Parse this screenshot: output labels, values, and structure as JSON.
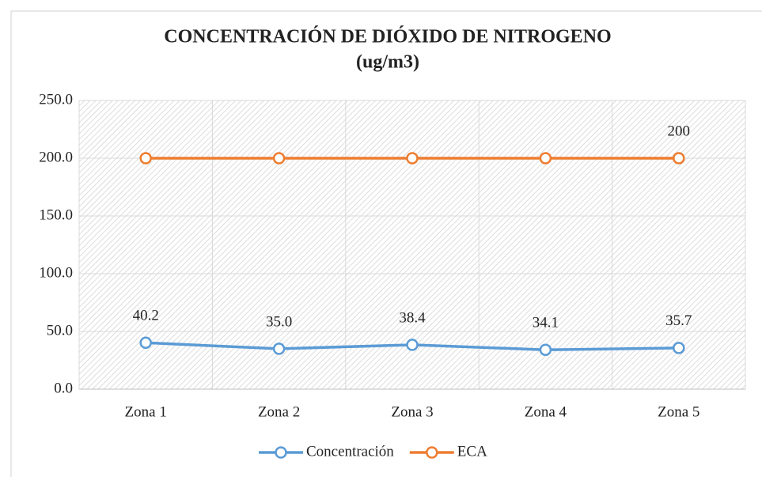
{
  "chart_data": {
    "type": "line",
    "title": "CONCENTRACIÓN DE DIÓXIDO DE NITROGENO",
    "subtitle": "(ug/m3)",
    "categories": [
      "Zona 1",
      "Zona 2",
      "Zona 3",
      "Zona 4",
      "Zona 5"
    ],
    "series": [
      {
        "name": "Concentración",
        "color": "#5b9bd5",
        "values": [
          40.2,
          35.0,
          38.4,
          34.1,
          35.7
        ],
        "value_labels": [
          "40.2",
          "35.0",
          "38.4",
          "34.1",
          "35.7"
        ]
      },
      {
        "name": "ECA",
        "color": "#ed7d31",
        "values": [
          200,
          200,
          200,
          200,
          200
        ],
        "value_labels": [
          null,
          null,
          null,
          null,
          "200"
        ]
      }
    ],
    "ylim": [
      0,
      250
    ],
    "yticks": [
      {
        "value": 0,
        "label": "0.0"
      },
      {
        "value": 50,
        "label": "50.0"
      },
      {
        "value": 100,
        "label": "100.0"
      },
      {
        "value": 150,
        "label": "150.0"
      },
      {
        "value": 200,
        "label": "200.0"
      },
      {
        "value": 250,
        "label": "250.0"
      }
    ],
    "grid": true,
    "legend": "bottom"
  }
}
